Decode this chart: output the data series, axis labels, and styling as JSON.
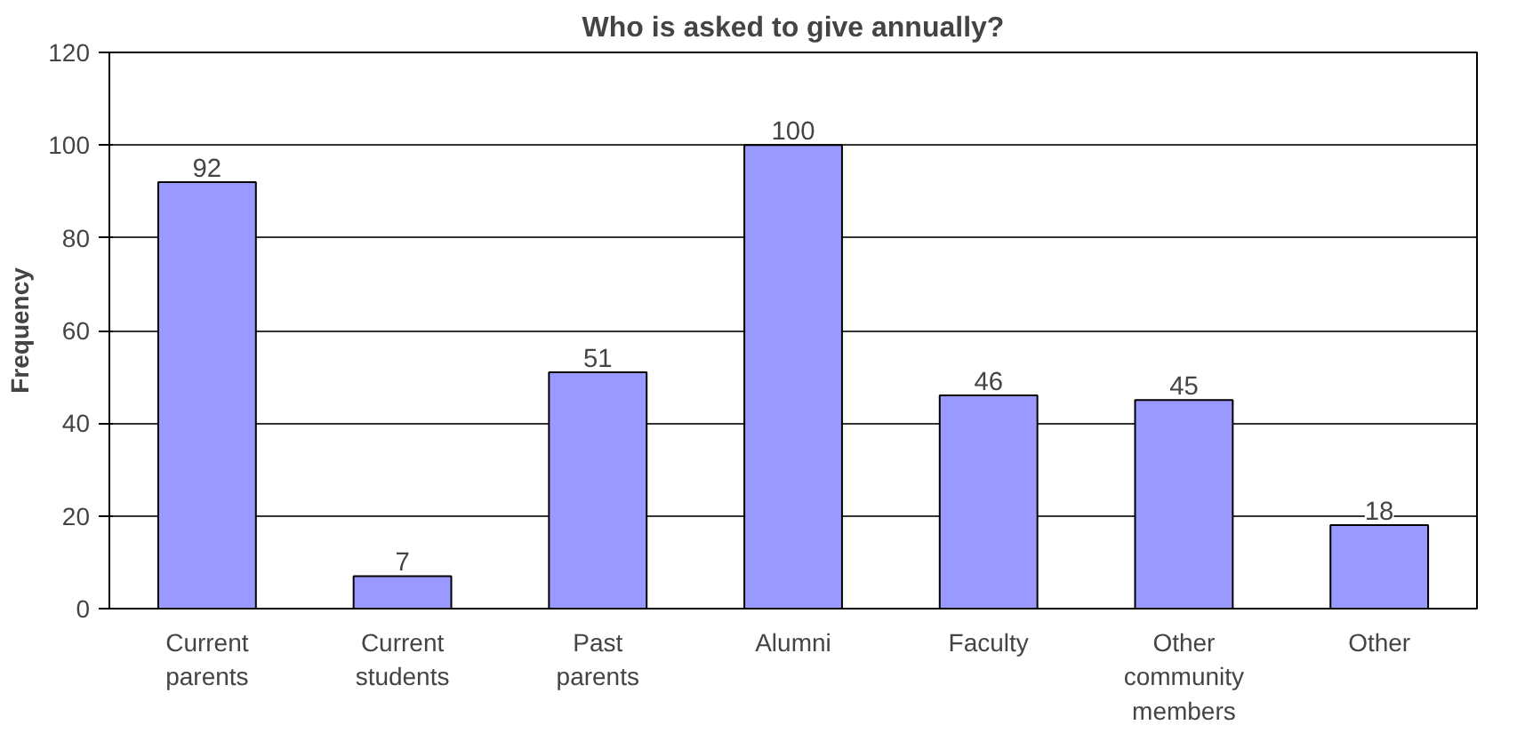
{
  "chart_data": {
    "type": "bar",
    "title": "Who is asked to give annually?",
    "ylabel": "Frequency",
    "categories": [
      "Current parents",
      "Current students",
      "Past parents",
      "Alumni",
      "Faculty",
      "Other community members",
      "Other"
    ],
    "values": [
      92,
      7,
      51,
      100,
      46,
      45,
      18
    ],
    "color": "#9999ff",
    "ylim": [
      0,
      120
    ],
    "yticks": [
      0,
      20,
      40,
      60,
      80,
      100,
      120
    ],
    "grid": "y",
    "data_labels": true
  }
}
